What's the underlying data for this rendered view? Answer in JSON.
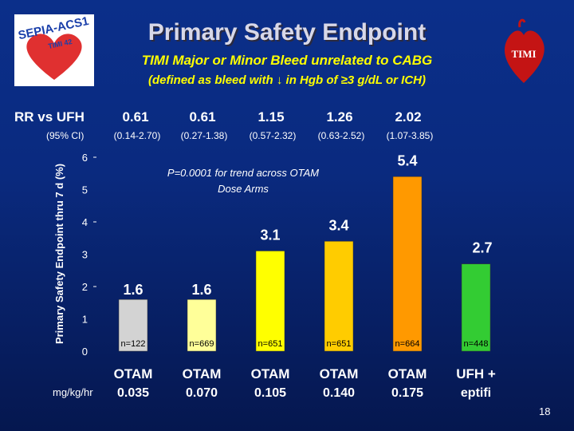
{
  "header": {
    "title": "Primary Safety Endpoint",
    "subtitle": "TIMI Major or Minor Bleed unrelated to CABG",
    "definition": "(defined as bleed with ↓ in Hgb of ≥3 g/dL or ICH)"
  },
  "logos": {
    "left_text": "SEPIA-ACS1",
    "left_subtext": "TIMI 42",
    "right_text": "TIMI"
  },
  "rr": {
    "label": "RR vs UFH",
    "values": [
      "0.61",
      "0.61",
      "1.15",
      "1.26",
      "2.02"
    ],
    "ci_label": "(95% CI)",
    "ci_values": [
      "(0.14-2.70)",
      "(0.27-1.38)",
      "(0.57-2.32)",
      "(0.63-2.52)",
      "(1.07-3.85)"
    ]
  },
  "chart_data": {
    "type": "bar",
    "ylabel": "Primary Safety Endpoint thru 7 d (%)",
    "ylim": [
      0,
      6
    ],
    "yticks": [
      "0",
      "1",
      "2",
      "3",
      "4",
      "5",
      "6"
    ],
    "grid": false,
    "annotation": "P=0.0001 for trend across OTAM Dose Arms",
    "categories": [
      {
        "line1": "OTAM",
        "line2": "0.035"
      },
      {
        "line1": "OTAM",
        "line2": "0.070"
      },
      {
        "line1": "OTAM",
        "line2": "0.105"
      },
      {
        "line1": "OTAM",
        "line2": "0.140"
      },
      {
        "line1": "OTAM",
        "line2": "0.175"
      },
      {
        "line1": "UFH +",
        "line2": "eptifi"
      }
    ],
    "values": [
      1.6,
      1.6,
      3.1,
      3.4,
      5.4,
      2.7
    ],
    "value_labels": [
      "1.6",
      "1.6",
      "3.1",
      "3.4",
      "5.4",
      "2.7"
    ],
    "n_labels": [
      "n=122",
      "n=669",
      "n=651",
      "n=651",
      "n=664",
      "n=448"
    ],
    "colors": [
      "#d3d3d3",
      "#ffff99",
      "#ffff00",
      "#ffcc00",
      "#ff9900",
      "#33cc33"
    ],
    "xunit_label": "mg/kg/hr"
  },
  "footer": {
    "slide_number": "18"
  }
}
